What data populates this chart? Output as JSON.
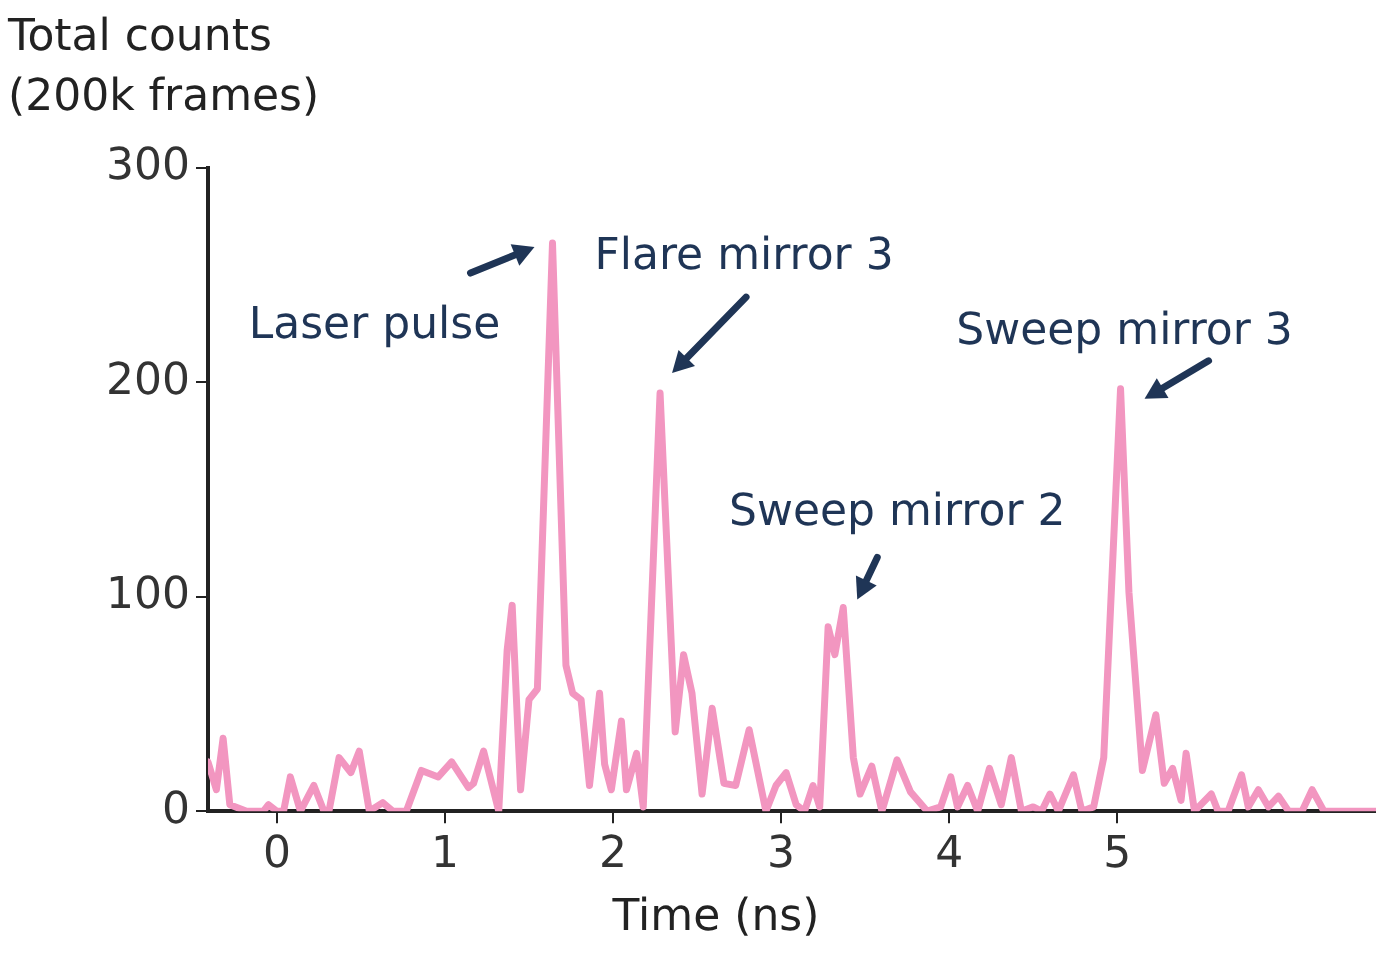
{
  "chart_data": {
    "type": "line",
    "xlabel": "Time (ns)",
    "ylabel": "Total counts\n(200k frames)",
    "x": [
      -0.41,
      -0.36,
      -0.32,
      -0.28,
      -0.18,
      -0.08,
      -0.05,
      0,
      0.04,
      0.08,
      0.14,
      0.22,
      0.28,
      0.31,
      0.37,
      0.44,
      0.49,
      0.55,
      0.63,
      0.69,
      0.77,
      0.86,
      0.96,
      1.04,
      1.14,
      1.17,
      1.23,
      1.32,
      1.37,
      1.4,
      1.45,
      1.5,
      1.55,
      1.64,
      1.72,
      1.76,
      1.81,
      1.86,
      1.92,
      1.95,
      1.99,
      2.05,
      2.08,
      2.14,
      2.18,
      2.28,
      2.32,
      2.37,
      2.42,
      2.47,
      2.53,
      2.59,
      2.66,
      2.73,
      2.81,
      2.91,
      2.97,
      3.03,
      3.09,
      3.14,
      3.19,
      3.23,
      3.28,
      3.32,
      3.37,
      3.43,
      3.47,
      3.54,
      3.6,
      3.69,
      3.77,
      3.87,
      3.95,
      4.01,
      4.05,
      4.11,
      4.17,
      4.24,
      4.31,
      4.37,
      4.43,
      4.5,
      4.55,
      4.6,
      4.65,
      4.74,
      4.79,
      4.86,
      4.92,
      5.02,
      5.07,
      5.15,
      5.23,
      5.28,
      5.33,
      5.38,
      5.41,
      5.46,
      5.56,
      5.6,
      5.66,
      5.74,
      5.78,
      5.84,
      5.9,
      5.96,
      6.02,
      6.1,
      6.16,
      6.23,
      6.54
    ],
    "series": [
      {
        "color": "#f296c0",
        "values": [
          23,
          10,
          34,
          3,
          0,
          0,
          3,
          0,
          0,
          16,
          0,
          12,
          0,
          0,
          25,
          18,
          28,
          0,
          4,
          0,
          0,
          19,
          16,
          23,
          11,
          13,
          28,
          0,
          75,
          96,
          10,
          52,
          57,
          265,
          68,
          55,
          52,
          12,
          55,
          22,
          10,
          42,
          10,
          27,
          2,
          195,
          125,
          37,
          73,
          55,
          8,
          48,
          13,
          12,
          38,
          0,
          12,
          18,
          3,
          0,
          12,
          2,
          86,
          73,
          95,
          25,
          8,
          21,
          0,
          24,
          9,
          0,
          2,
          16,
          2,
          12,
          0,
          20,
          3,
          25,
          0,
          2,
          0,
          8,
          0,
          17,
          0,
          2,
          25,
          197,
          102,
          19,
          45,
          13,
          20,
          5,
          27,
          0,
          8,
          0,
          0,
          17,
          2,
          10,
          2,
          7,
          0,
          0,
          10,
          0,
          0
        ]
      }
    ],
    "xlim": [
      -0.41,
      6.54
    ],
    "xticks": [
      0,
      1,
      2,
      3,
      4,
      5
    ],
    "ylim": [
      0,
      300
    ],
    "yticks": [
      0,
      100,
      200,
      300
    ],
    "grid": false,
    "legend": false,
    "marker": "none",
    "line_style": "solid",
    "annotations": [
      {
        "text": "Laser pulse",
        "x": 1.64,
        "y": 265
      },
      {
        "text": "Flare mirror 3",
        "x": 2.28,
        "y": 195
      },
      {
        "text": "Sweep mirror 2",
        "x": 3.37,
        "y": 95
      },
      {
        "text": "Sweep mirror 3",
        "x": 5.02,
        "y": 197
      }
    ]
  }
}
